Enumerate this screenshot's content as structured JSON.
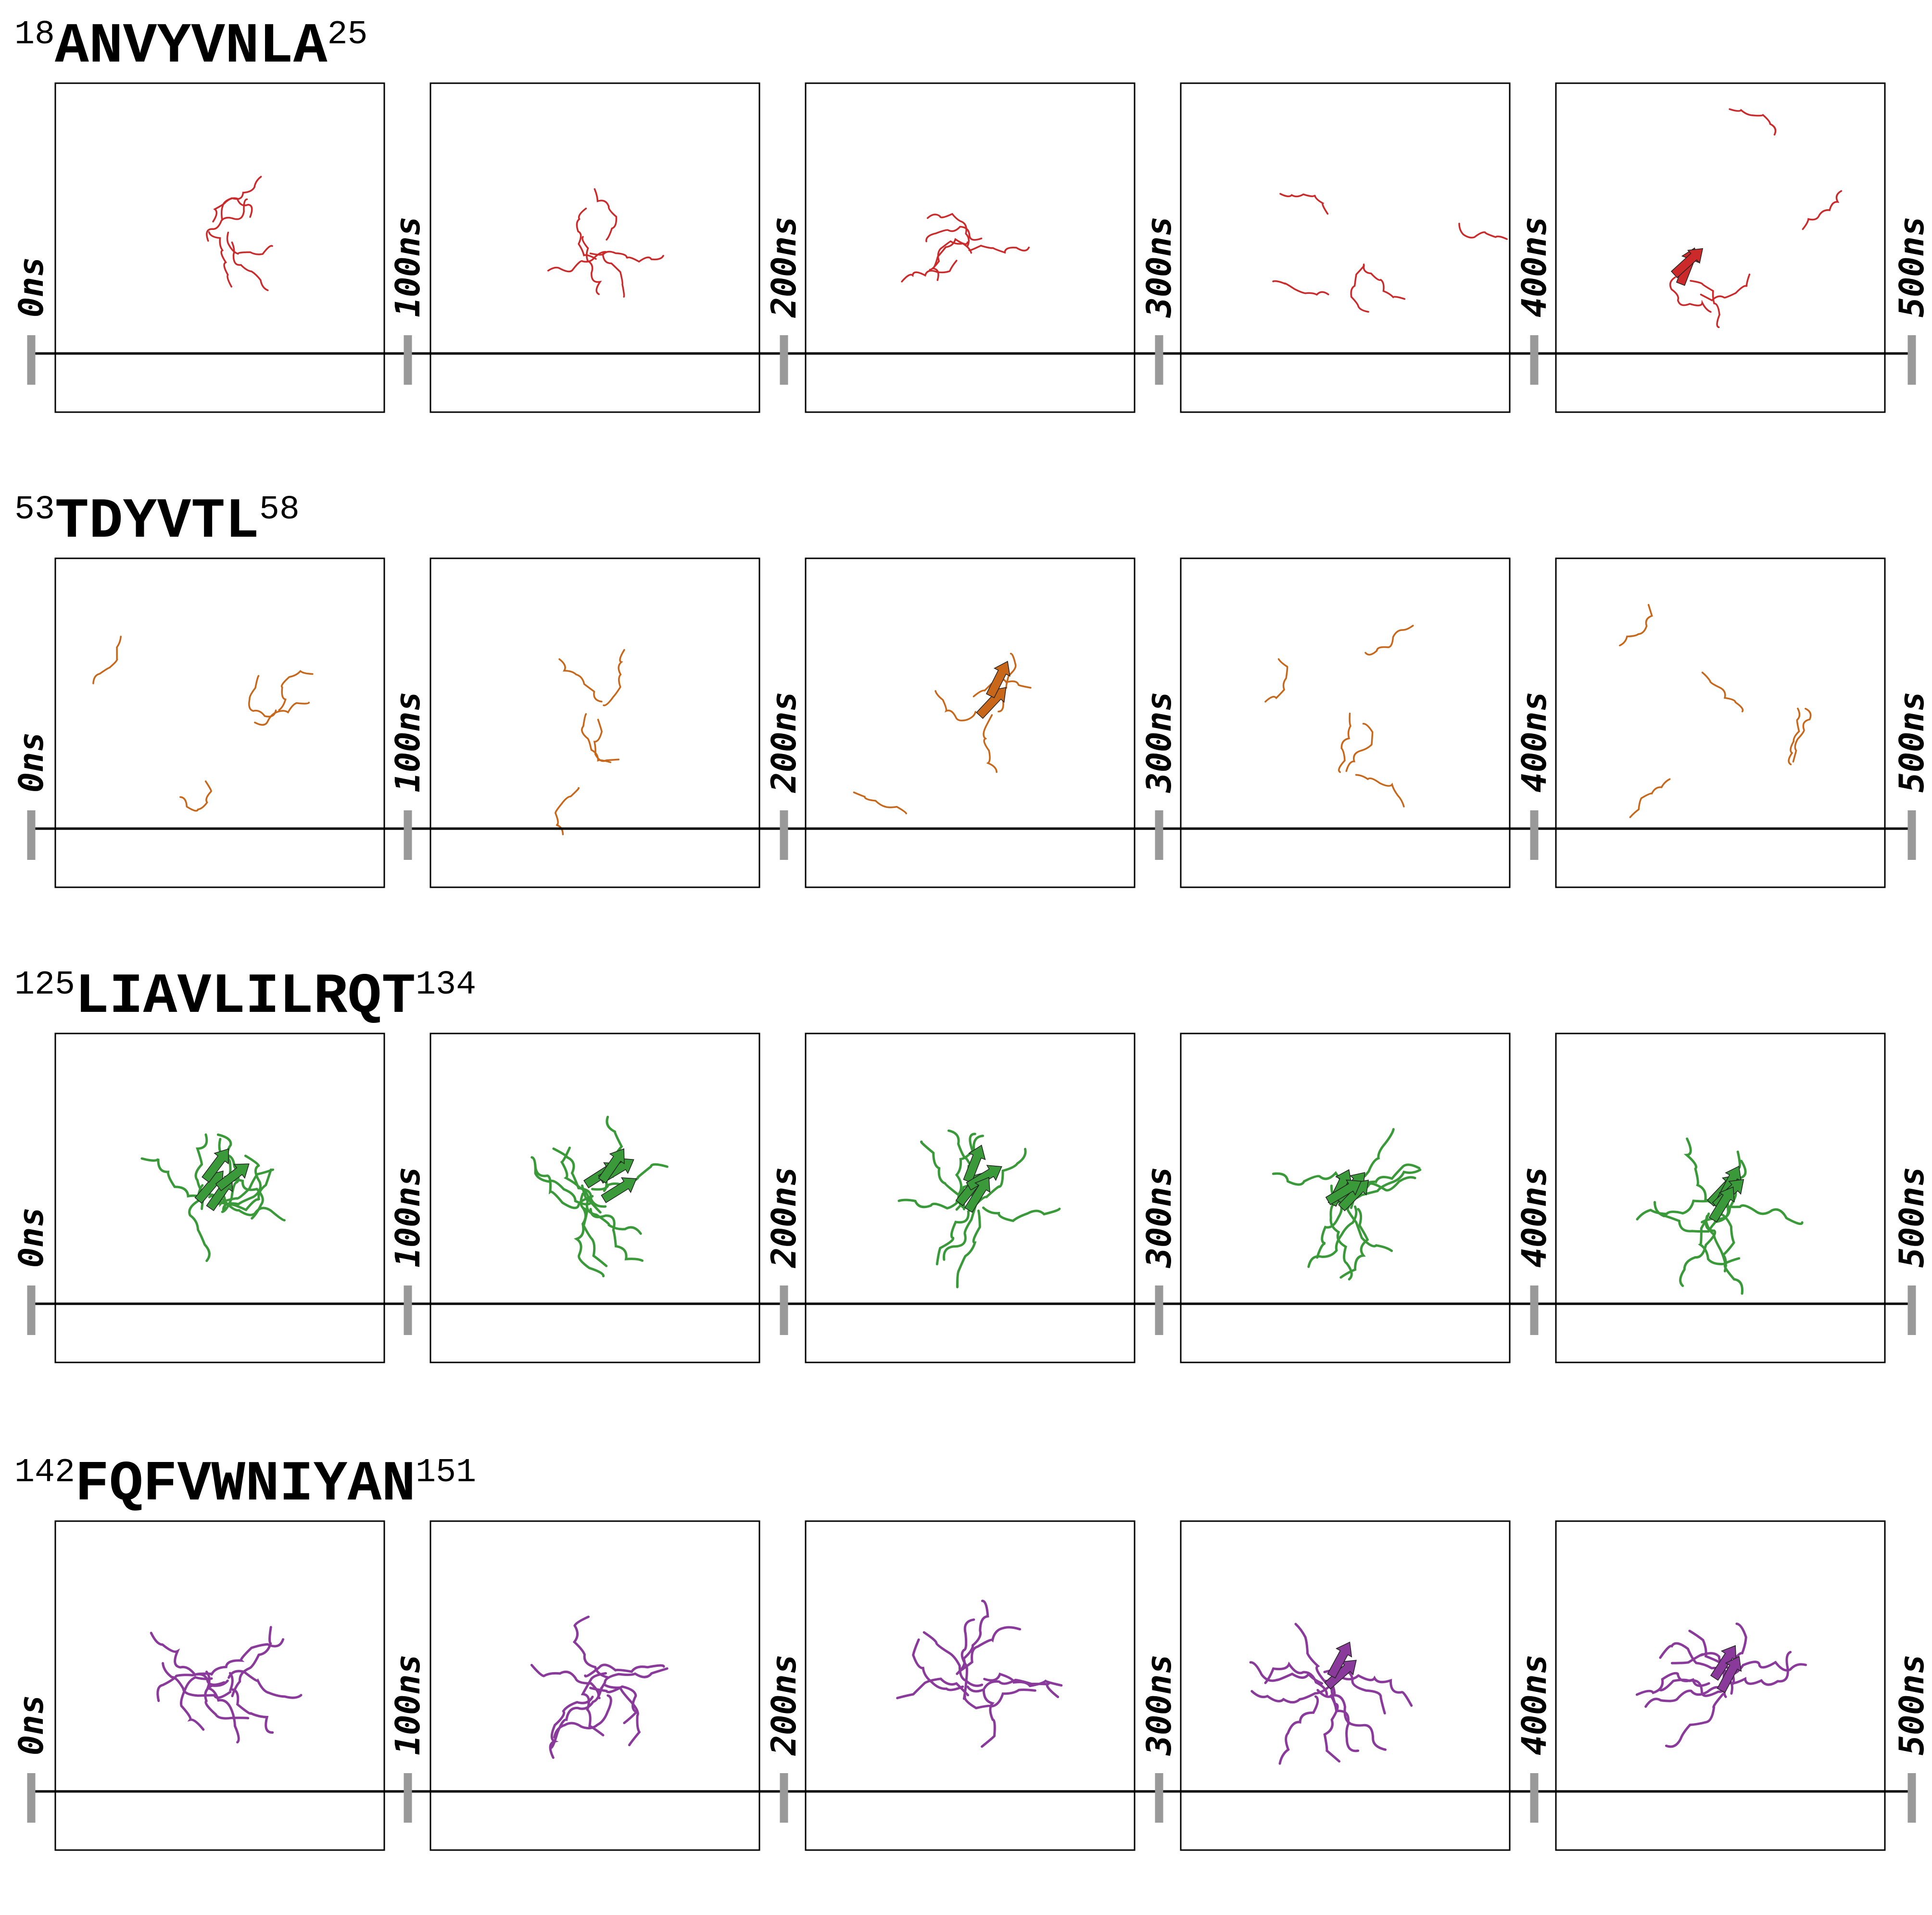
{
  "time_labels": [
    "0ns",
    "100ns",
    "200ns",
    "300ns",
    "400ns",
    "500ns"
  ],
  "rows": [
    {
      "start": "18",
      "seq": "ANVYVNLA",
      "end": "25",
      "color": "#cc2a2a"
    },
    {
      "start": "53",
      "seq": "TDYVTL",
      "end": "58",
      "color": "#c8661a"
    },
    {
      "start": "125",
      "seq": "LIAVLILRQT",
      "end": "134",
      "color": "#3a9a3a"
    },
    {
      "start": "142",
      "seq": "FQFVWNIYAN",
      "end": "151",
      "color": "#8a3a9a"
    }
  ],
  "colors": {
    "tick": "#999999",
    "axis": "#000000",
    "frame": "#000000"
  }
}
